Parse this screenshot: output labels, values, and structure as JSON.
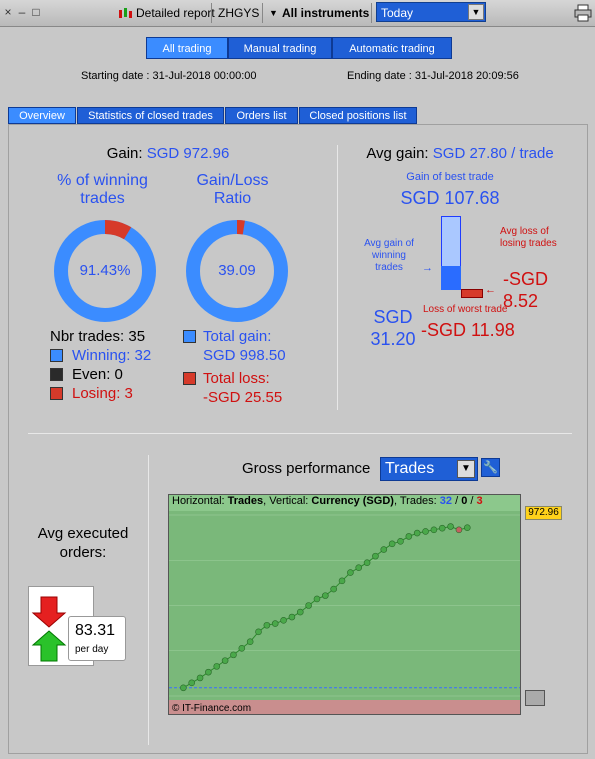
{
  "toolbar": {
    "close_icon": "×",
    "minimize_icon": "–",
    "maximize_icon": "□",
    "report_label": "Detailed report",
    "symbol": "ZHGYS",
    "instruments_label": "All instruments",
    "period_value": "Today",
    "dropdown_arrow": "▼",
    "instruments_arrow": "▼"
  },
  "modes": [
    {
      "label": "All trading"
    },
    {
      "label": "Manual trading"
    },
    {
      "label": "Automatic trading"
    }
  ],
  "dates": {
    "starting": "Starting date :  31-Jul-2018 00:00:00",
    "ending": "Ending date :  31-Jul-2018 20:09:56"
  },
  "tabs": [
    {
      "label": "Overview"
    },
    {
      "label": "Statistics of closed trades"
    },
    {
      "label": "Orders list"
    },
    {
      "label": "Closed positions list"
    }
  ],
  "gain": {
    "label": "Gain:",
    "value": "SGD 972.96",
    "winning_title": "% of winning trades",
    "ratio_title": "Gain/Loss Ratio",
    "winning_pct": "91.43%",
    "ratio_value": "39.09",
    "winning_fraction": 0.9143,
    "ratio_fraction": 0.975,
    "nbr_trades": "Nbr trades: 35",
    "winning": "Winning: 32",
    "even": "Even: 0",
    "losing": "Losing: 3",
    "total_gain_label": "Total gain:",
    "total_gain": "SGD 998.50",
    "total_loss_label": "Total loss:",
    "total_loss": "-SGD 25.55"
  },
  "avg": {
    "label": "Avg gain:",
    "value": "SGD 27.80 / trade",
    "best_label": "Gain of best trade",
    "best_value": "SGD 107.68",
    "avg_gain_label": "Avg gain of winning trades",
    "avg_gain_value": "SGD 31.20",
    "avg_loss_label": "Avg loss of losing trades",
    "avg_loss_value": "-SGD 8.52",
    "worst_label": "Loss of worst trade",
    "worst_value": "-SGD 11.98"
  },
  "orders": {
    "label": "Avg executed orders:",
    "value": "83.31",
    "unit": "per day"
  },
  "performance": {
    "label": "Gross performance",
    "selector": "Trades",
    "header_prefix": "Horizontal: ",
    "header_h": "Trades",
    "header_mid": ", Vertical: ",
    "header_v": "Currency (SGD)",
    "header_trades": ", Trades: ",
    "trades_win": "32",
    "trades_even": "0",
    "trades_loss": "3",
    "slash": " / ",
    "copyright": "© IT-Finance.com",
    "last_value_label": "972.96"
  },
  "colors": {
    "blue": "#2a52f0",
    "red": "#d01010",
    "ring_blue": "#3b8cff",
    "ring_red": "#d63a2a"
  },
  "chart_data": {
    "type": "line",
    "x": [
      1,
      2,
      3,
      4,
      5,
      6,
      7,
      8,
      9,
      10,
      11,
      12,
      13,
      14,
      15,
      16,
      17,
      18,
      19,
      20,
      21,
      22,
      23,
      24,
      25,
      26,
      27,
      28,
      29,
      30,
      31,
      32,
      33,
      34,
      35
    ],
    "values": [
      0,
      30,
      60,
      95,
      130,
      165,
      200,
      240,
      280,
      340,
      380,
      390,
      410,
      430,
      460,
      500,
      540,
      560,
      600,
      650,
      700,
      730,
      760,
      800,
      840,
      875,
      890,
      920,
      940,
      950,
      960,
      970,
      980,
      960,
      972.96
    ],
    "xlabel": "Trades",
    "ylabel": "Currency (SGD)",
    "ylim": [
      -50,
      1050
    ],
    "grid": true
  }
}
